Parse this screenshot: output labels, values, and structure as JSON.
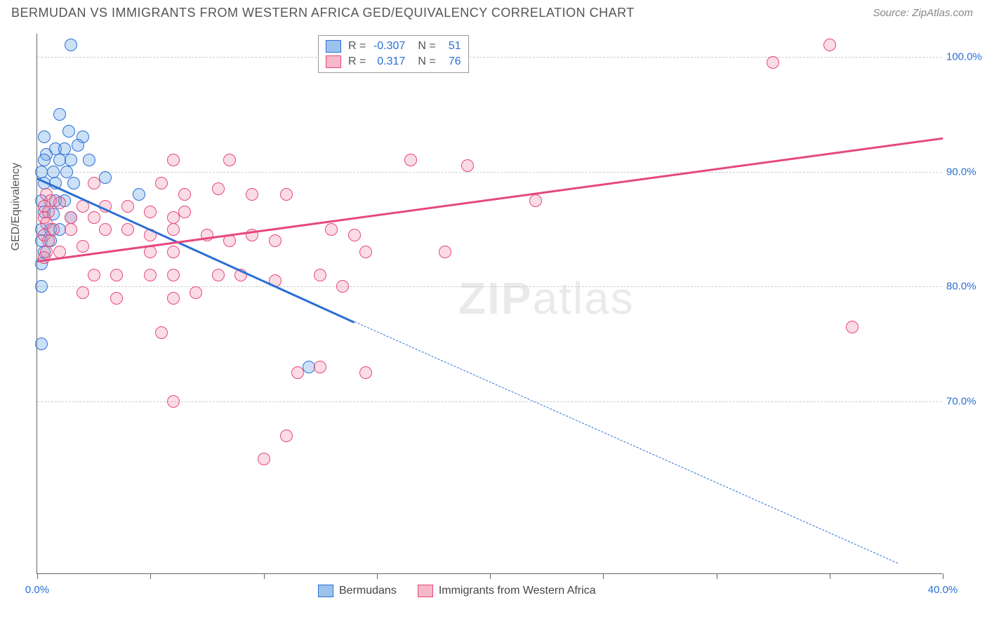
{
  "header": {
    "title": "BERMUDAN VS IMMIGRANTS FROM WESTERN AFRICA GED/EQUIVALENCY CORRELATION CHART",
    "source": "Source: ZipAtlas.com"
  },
  "chart": {
    "type": "scatter",
    "ylabel": "GED/Equivalency",
    "background_color": "#ffffff",
    "grid_color": "#cccccc",
    "axis_color": "#666666",
    "tick_label_color": "#2a6fd6",
    "tick_fontsize": 15,
    "ylabel_fontsize": 16,
    "xlim": [
      0,
      40
    ],
    "ylim": [
      55,
      102
    ],
    "xticks": [
      0,
      5,
      10,
      15,
      20,
      25,
      30,
      35,
      40
    ],
    "xtick_labels": {
      "0": "0.0%",
      "40": "40.0%"
    },
    "yticks": [
      70,
      80,
      90,
      100
    ],
    "ytick_labels": {
      "70": "70.0%",
      "80": "80.0%",
      "90": "90.0%",
      "100": "100.0%"
    },
    "marker_radius": 9,
    "marker_border_width": 1.5,
    "marker_fill_opacity": 0.25,
    "watermark": "ZIPatlas"
  },
  "legend_top": {
    "rows": [
      {
        "swatch_fill": "#9cc3ec",
        "swatch_border": "#2a6fd6",
        "r": "-0.307",
        "n": "51"
      },
      {
        "swatch_fill": "#f5b8c9",
        "swatch_border": "#e6487d",
        "r": "0.317",
        "n": "76"
      }
    ],
    "r_label": "R =",
    "n_label": "N ="
  },
  "legend_bottom": {
    "items": [
      {
        "swatch_fill": "#9cc3ec",
        "swatch_border": "#2a6fd6",
        "label": "Bermudans"
      },
      {
        "swatch_fill": "#f5b8c9",
        "swatch_border": "#e6487d",
        "label": "Immigrants from Western Africa"
      }
    ]
  },
  "series": [
    {
      "name": "Bermudans",
      "color_border": "#2a6fd6",
      "color_fill": "rgba(110,168,228,0.35)",
      "trend": {
        "x1": 0,
        "y1": 89.5,
        "x2": 14,
        "y2": 77,
        "solid": true,
        "color": "#2a6fd6",
        "width": 2.5
      },
      "trend_ext": {
        "x1": 14,
        "y1": 77,
        "x2": 38,
        "y2": 56,
        "solid": false,
        "color": "#2a6fd6",
        "width": 1.2
      },
      "points": [
        [
          1.5,
          101
        ],
        [
          1.0,
          95
        ],
        [
          0.3,
          93
        ],
        [
          1.4,
          93.5
        ],
        [
          2.0,
          93
        ],
        [
          0.4,
          91.5
        ],
        [
          0.8,
          92
        ],
        [
          1.2,
          92
        ],
        [
          1.8,
          92.3
        ],
        [
          0.3,
          91
        ],
        [
          1.0,
          91
        ],
        [
          1.5,
          91
        ],
        [
          2.3,
          91
        ],
        [
          0.2,
          90
        ],
        [
          0.7,
          90
        ],
        [
          1.3,
          90
        ],
        [
          3.0,
          89.5
        ],
        [
          0.3,
          89
        ],
        [
          0.8,
          89
        ],
        [
          1.6,
          89
        ],
        [
          4.5,
          88
        ],
        [
          0.2,
          87.5
        ],
        [
          0.8,
          87.5
        ],
        [
          1.2,
          87.5
        ],
        [
          0.3,
          86.5
        ],
        [
          0.7,
          86.3
        ],
        [
          1.5,
          86
        ],
        [
          0.2,
          85
        ],
        [
          0.6,
          85
        ],
        [
          1.0,
          85
        ],
        [
          0.2,
          84
        ],
        [
          0.6,
          84
        ],
        [
          0.3,
          83
        ],
        [
          0.2,
          82
        ],
        [
          0.2,
          80
        ],
        [
          0.2,
          75
        ],
        [
          12.0,
          73
        ]
      ]
    },
    {
      "name": "Immigrants from Western Africa",
      "color_border": "#e6487d",
      "color_fill": "rgba(240,140,170,0.30)",
      "trend": {
        "x1": 0,
        "y1": 82.3,
        "x2": 40,
        "y2": 93,
        "solid": true,
        "color": "#e6487d",
        "width": 2.5
      },
      "points": [
        [
          35,
          101
        ],
        [
          32.5,
          99.5
        ],
        [
          36,
          76.5
        ],
        [
          6.0,
          91
        ],
        [
          8.5,
          91
        ],
        [
          16.5,
          91
        ],
        [
          19,
          90.5
        ],
        [
          2.5,
          89
        ],
        [
          5.5,
          89
        ],
        [
          6.5,
          88
        ],
        [
          8.0,
          88.5
        ],
        [
          9.5,
          88
        ],
        [
          11,
          88
        ],
        [
          6.5,
          86.5
        ],
        [
          0.4,
          88
        ],
        [
          0.6,
          87.5
        ],
        [
          0.3,
          87
        ],
        [
          0.5,
          86.5
        ],
        [
          0.3,
          86
        ],
        [
          1.0,
          87.3
        ],
        [
          2.0,
          87
        ],
        [
          3.0,
          87
        ],
        [
          4.0,
          87
        ],
        [
          1.5,
          86
        ],
        [
          2.5,
          86
        ],
        [
          5.0,
          86.5
        ],
        [
          6.0,
          86
        ],
        [
          22,
          87.5
        ],
        [
          0.4,
          85.5
        ],
        [
          0.7,
          85
        ],
        [
          0.3,
          84.5
        ],
        [
          0.5,
          84
        ],
        [
          1.5,
          85
        ],
        [
          3.0,
          85
        ],
        [
          4.0,
          85
        ],
        [
          5.0,
          84.5
        ],
        [
          6.0,
          85
        ],
        [
          7.5,
          84.5
        ],
        [
          8.5,
          84
        ],
        [
          9.5,
          84.5
        ],
        [
          10.5,
          84
        ],
        [
          13,
          85
        ],
        [
          14,
          84.5
        ],
        [
          14.5,
          83
        ],
        [
          0.4,
          83
        ],
        [
          0.3,
          82.5
        ],
        [
          1.0,
          83
        ],
        [
          2.0,
          83.5
        ],
        [
          5.0,
          83
        ],
        [
          6.0,
          83
        ],
        [
          2.5,
          81
        ],
        [
          3.5,
          81
        ],
        [
          5.0,
          81
        ],
        [
          6.0,
          81
        ],
        [
          8.0,
          81
        ],
        [
          9.0,
          81
        ],
        [
          10.5,
          80.5
        ],
        [
          12.5,
          81
        ],
        [
          13.5,
          80
        ],
        [
          18,
          83
        ],
        [
          2.0,
          79.5
        ],
        [
          3.5,
          79
        ],
        [
          6.0,
          79
        ],
        [
          7.0,
          79.5
        ],
        [
          5.5,
          76
        ],
        [
          11.5,
          72.5
        ],
        [
          12.5,
          73
        ],
        [
          14.5,
          72.5
        ],
        [
          6.0,
          70
        ],
        [
          11,
          67
        ],
        [
          10,
          65
        ]
      ]
    }
  ]
}
